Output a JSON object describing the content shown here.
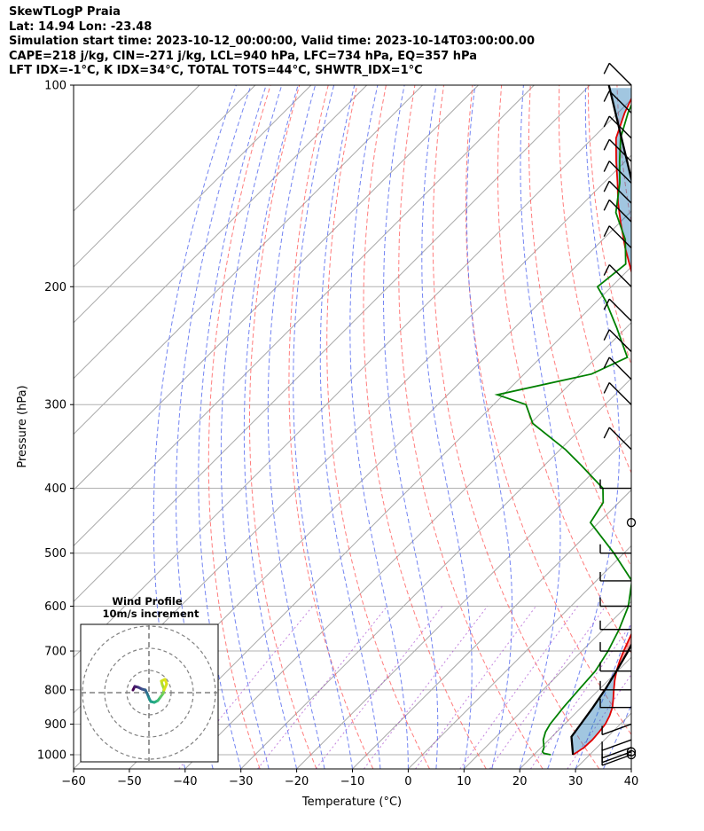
{
  "header": {
    "line1": "SkewTLogP Praia",
    "line2": "Lat: 14.94   Lon: -23.48",
    "line3": "Simulation start time: 2023-10-12_00:00:00, Valid time: 2023-10-14T03:00:00.00",
    "line4": "CAPE=218 j/kg, CIN=-271 j/kg, LCL=940 hPa, LFC=734 hPa, EQ=357 hPa",
    "line5": "LFT IDX=-1°C, K IDX=34°C, TOTAL TOTS=44°C, SHWTR_IDX=1°C"
  },
  "chart_data": {
    "type": "line",
    "title": "SkewTLogP Praia",
    "xlabel": "Temperature (°C)",
    "ylabel": "Pressure (hPa)",
    "xlim": [
      -60,
      40
    ],
    "ylim": [
      1050,
      100
    ],
    "yscale": "log",
    "grid": true,
    "x_ticks": [
      -60,
      -50,
      -40,
      -30,
      -20,
      -10,
      0,
      10,
      20,
      30,
      40
    ],
    "x_tick_labels": [
      "−60",
      "−50",
      "−40",
      "−30",
      "−20",
      "−10",
      "0",
      "10",
      "20",
      "30",
      "40"
    ],
    "y_ticks": [
      1000,
      900,
      800,
      700,
      600,
      500,
      400,
      300,
      200,
      100
    ],
    "y_tick_labels": [
      "1000",
      "900",
      "800",
      "700",
      "600",
      "500",
      "400",
      "300",
      "200",
      "100"
    ],
    "series": [
      {
        "role": "temperature",
        "color": "#e00000",
        "pressure": [
          1000,
          990,
          975,
          950,
          925,
          900,
          875,
          850,
          825,
          800,
          775,
          750,
          725,
          700,
          650,
          600,
          550,
          500,
          450,
          400,
          350,
          300,
          275,
          250,
          225,
          200,
          175,
          160,
          150,
          140,
          130,
          120,
          110,
          100
        ],
        "temperature": [
          27,
          27.3,
          27.7,
          27.8,
          27.6,
          27.3,
          26.6,
          25.6,
          24.2,
          22.7,
          21.2,
          19.8,
          18.6,
          17.5,
          15.4,
          12.8,
          9.5,
          5.5,
          0.9,
          -5.2,
          -12.2,
          -20.9,
          -26.3,
          -32.2,
          -38.9,
          -45.7,
          -54.5,
          -60.0,
          -63.8,
          -67.5,
          -71.6,
          -75.8,
          -78.8,
          -81.4
        ]
      },
      {
        "role": "dewpoint",
        "color": "#008000",
        "pressure": [
          1000,
          995,
          990,
          975,
          950,
          925,
          900,
          850,
          800,
          750,
          700,
          650,
          600,
          550,
          500,
          450,
          420,
          400,
          370,
          350,
          320,
          300,
          290,
          270,
          255,
          230,
          210,
          200,
          185,
          170,
          155,
          140,
          130,
          120,
          110,
          100
        ],
        "dewpoint": [
          23,
          21.5,
          21,
          20.5,
          19,
          18,
          17.4,
          16.8,
          16.4,
          16.0,
          14.7,
          12.8,
          10.3,
          6.4,
          -1.8,
          -11.5,
          -12.8,
          -15.4,
          -23.3,
          -29.1,
          -39.6,
          -44.2,
          -51.1,
          -37.9,
          -34.5,
          -41.8,
          -48.5,
          -52.5,
          -51.5,
          -56.0,
          -62.5,
          -67.1,
          -71.0,
          -75.0,
          -78.2,
          -81.0
        ]
      },
      {
        "role": "parcel",
        "color": "#000000",
        "pressure": [
          1000,
          940,
          900,
          850,
          800,
          750,
          700,
          650,
          600,
          550,
          500,
          450,
          400,
          357,
          300,
          250,
          200,
          150,
          100
        ],
        "temperature": [
          27,
          23.5,
          22.9,
          22.1,
          21.1,
          19.8,
          18.3,
          16.5,
          14.4,
          11.9,
          8.8,
          4.9,
          -0.3,
          -6.1,
          -16.1,
          -27.2,
          -41.7,
          -60.4,
          -86.6
        ]
      }
    ],
    "wind_barbs_pressure": [
      1000,
      990,
      975,
      950,
      900,
      850,
      800,
      750,
      700,
      650,
      600,
      550,
      500,
      450,
      400,
      350,
      300,
      275,
      250,
      225,
      200,
      175,
      160,
      150,
      140,
      130,
      120,
      110,
      100
    ],
    "hodograph": {
      "title": "Wind Profile",
      "subtitle": "10m/s increment"
    }
  }
}
